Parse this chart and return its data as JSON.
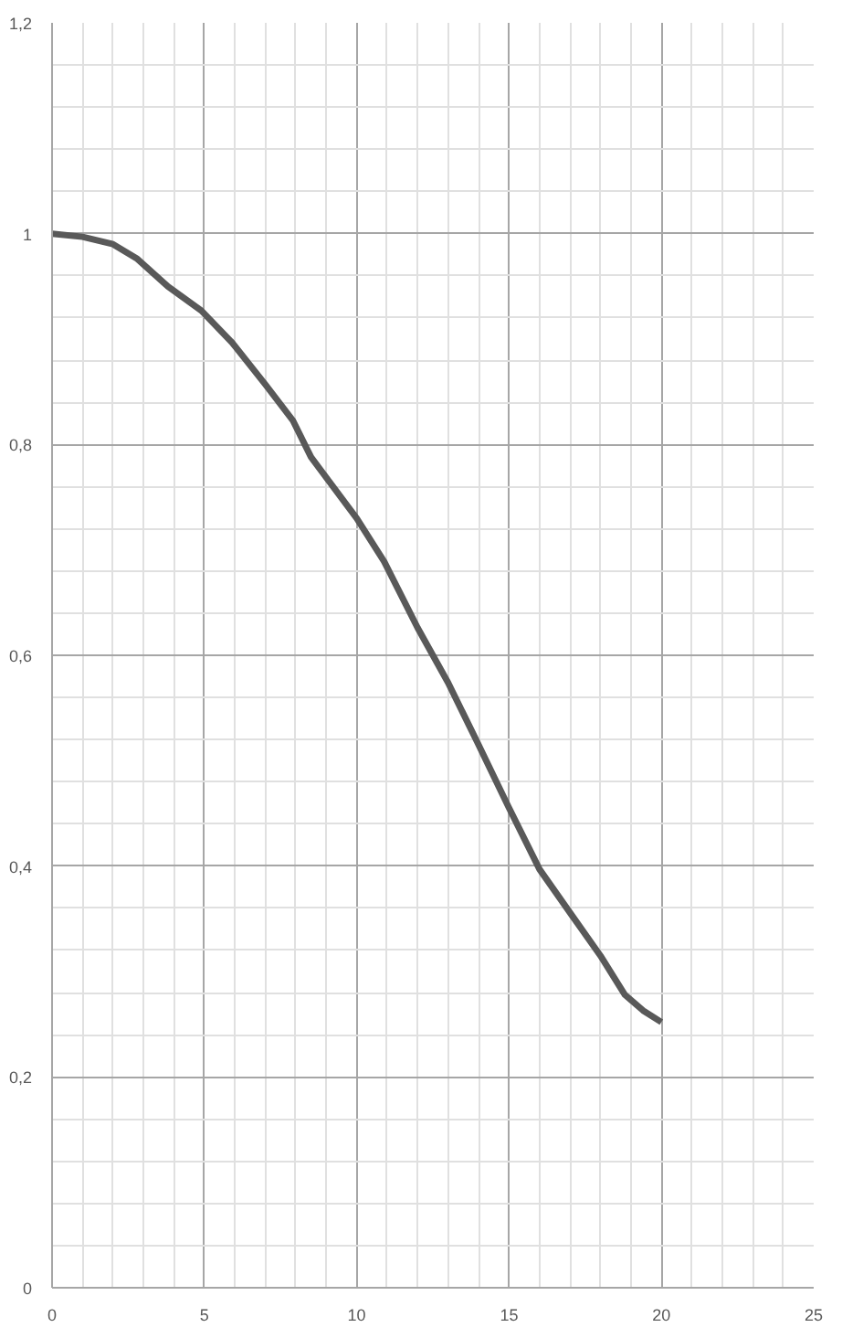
{
  "chart_data": {
    "type": "line",
    "x": [
      0,
      1,
      2,
      2.8,
      3.8,
      4.9,
      5.9,
      7.0,
      7.9,
      8.5,
      10.0,
      10.9,
      12.0,
      13.0,
      13.95,
      14.97,
      16.0,
      17.07,
      18.0,
      18.8,
      19.4,
      20.0
    ],
    "series": [
      {
        "color": "#595959",
        "values": [
          1.0,
          0.997,
          0.99,
          0.976,
          0.95,
          0.927,
          0.897,
          0.857,
          0.823,
          0.788,
          0.73,
          0.689,
          0.626,
          0.574,
          0.518,
          0.457,
          0.397,
          0.353,
          0.315,
          0.278,
          0.263,
          0.252
        ]
      }
    ],
    "xlim": [
      0,
      25
    ],
    "xticks": [
      0,
      5,
      10,
      15,
      20,
      25
    ],
    "ylim": [
      0,
      1.2
    ],
    "yticks": [
      {
        "value": 0,
        "label": "0"
      },
      {
        "value": 0.2,
        "label": "0,2"
      },
      {
        "value": 0.4,
        "label": "0,4"
      },
      {
        "value": 0.6,
        "label": "0,6"
      },
      {
        "value": 0.8,
        "label": "0,8"
      },
      {
        "value": 1,
        "label": "1"
      },
      {
        "value": 1.2,
        "label": "1,2"
      }
    ],
    "grid": true,
    "marker": "none",
    "line_style": "solid"
  }
}
